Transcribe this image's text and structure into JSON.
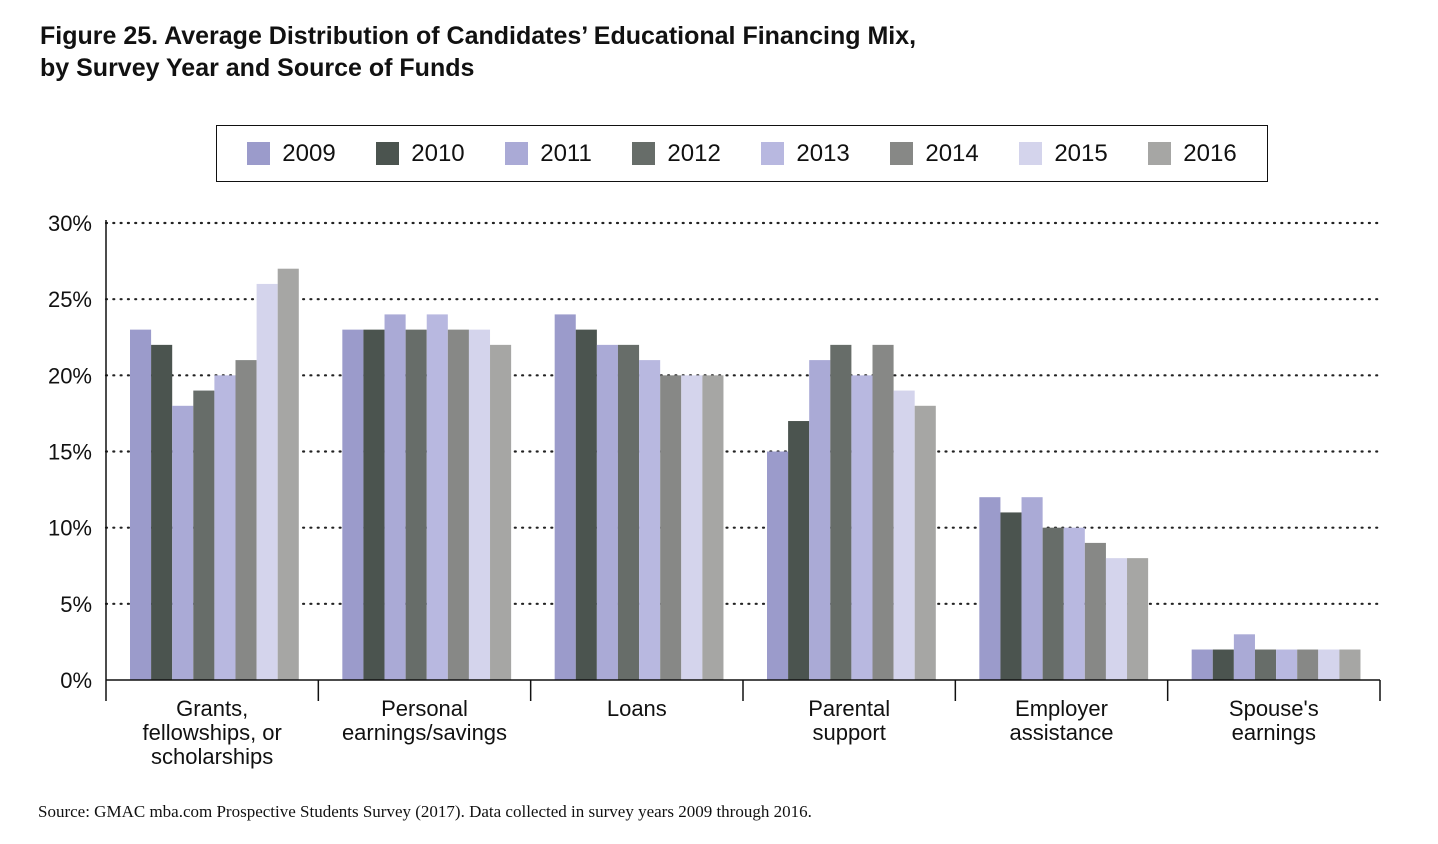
{
  "title_line1": "Figure 25. Average Distribution of Candidates’ Educational Financing Mix,",
  "title_line2": "by Survey Year and Source of Funds",
  "source": "Source: GMAC mba.com Prospective Students Survey (2017). Data collected in survey years 2009 through 2016.",
  "chart_data": {
    "type": "bar",
    "title": "Figure 25. Average Distribution of Candidates’ Educational Financing Mix, by Survey Year and Source of Funds",
    "categories": [
      [
        "Grants,",
        "fellowships, or",
        "scholarships"
      ],
      [
        "Personal",
        "earnings/savings"
      ],
      [
        "Loans"
      ],
      [
        "Parental",
        "support"
      ],
      [
        "Employer",
        "assistance"
      ],
      [
        "Spouse's",
        "earnings"
      ]
    ],
    "series": [
      {
        "name": "2009",
        "color": "#9b9bcb",
        "values": [
          23,
          23,
          24,
          15,
          12,
          2
        ]
      },
      {
        "name": "2010",
        "color": "#4b544f",
        "values": [
          22,
          23,
          23,
          17,
          11,
          2
        ]
      },
      {
        "name": "2011",
        "color": "#aaaad6",
        "values": [
          18,
          24,
          22,
          21,
          12,
          3
        ]
      },
      {
        "name": "2012",
        "color": "#676d69",
        "values": [
          19,
          23,
          22,
          22,
          10,
          2
        ]
      },
      {
        "name": "2013",
        "color": "#b8b8e0",
        "values": [
          20,
          24,
          21,
          20,
          10,
          2
        ]
      },
      {
        "name": "2014",
        "color": "#878886",
        "values": [
          21,
          23,
          20,
          22,
          9,
          2
        ]
      },
      {
        "name": "2015",
        "color": "#d4d4ec",
        "values": [
          26,
          23,
          20,
          19,
          8,
          2
        ]
      },
      {
        "name": "2016",
        "color": "#a6a6a4",
        "values": [
          27,
          22,
          20,
          18,
          8,
          2
        ]
      }
    ],
    "yticks": [
      "0%",
      "5%",
      "10%",
      "15%",
      "20%",
      "25%",
      "30%"
    ],
    "ylim": [
      0,
      30
    ],
    "ylabel": "",
    "xlabel": "",
    "grid": "dotted-horizontal",
    "legend": "top"
  }
}
